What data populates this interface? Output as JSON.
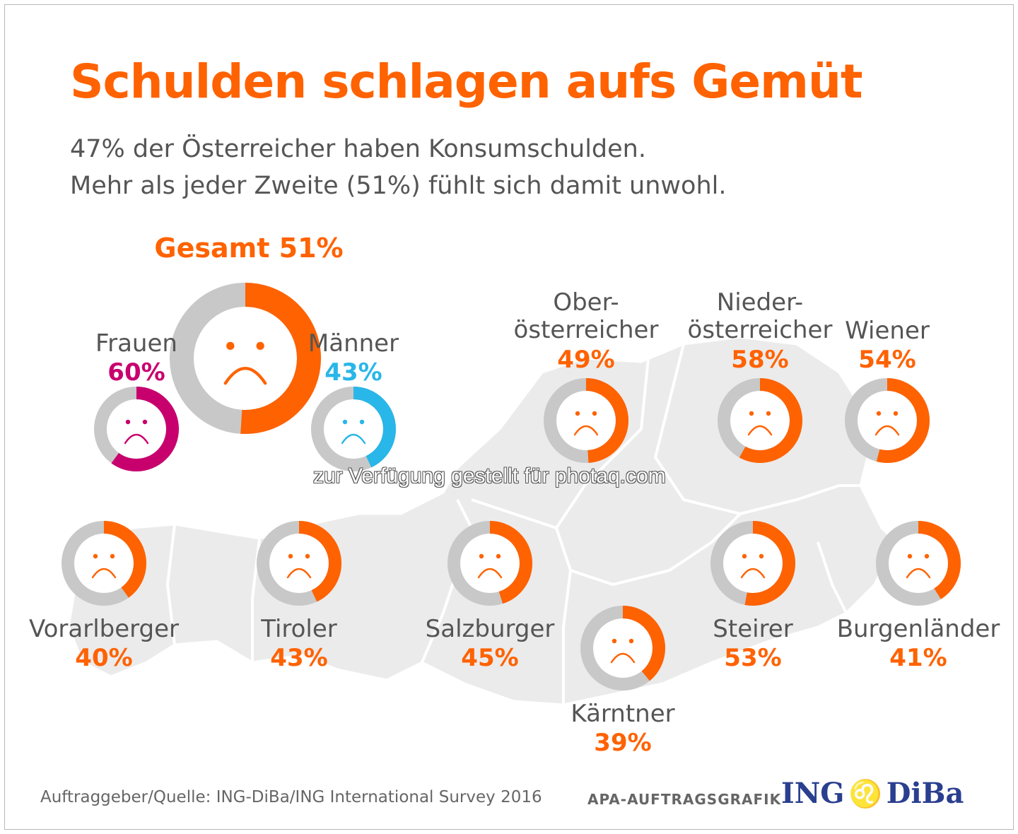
{
  "title": "Schulden schlagen aufs Gemüt",
  "subtitle_line1": "47% der Österreicher haben Konsumschulden.",
  "subtitle_line2": "Mehr als jeder Zweite (51%) fühlt sich damit unwohl.",
  "gesamt_label": "Gesamt 51%",
  "source": "Auftraggeber/Quelle: ING-DiBa/ING International Survey 2016",
  "agency": "APA-AUFTRAGSGRAFIK",
  "logo_left": "ING",
  "logo_right": "DiBa",
  "logo_icon": "lion-icon",
  "watermark": "zur Verfügung gestellt für photaq.com",
  "colors": {
    "accent": "#ff6200",
    "women": "#c8006e",
    "men": "#29b6e8",
    "ring_grey": "#c8c8c8",
    "map": "#ebebeb"
  },
  "chart_data": {
    "type": "pie",
    "series": [
      {
        "key": "gesamt",
        "label": "Gesamt",
        "value": 51,
        "display": "51%",
        "color": "#ff6200"
      },
      {
        "key": "frauen",
        "label": "Frauen",
        "value": 60,
        "display": "60%",
        "color": "#c8006e"
      },
      {
        "key": "maenner",
        "label": "Männer",
        "value": 43,
        "display": "43%",
        "color": "#29b6e8"
      },
      {
        "key": "ooe",
        "label": "Ober-\nösterreicher",
        "value": 49,
        "display": "49%",
        "color": "#ff6200"
      },
      {
        "key": "noe",
        "label": "Nieder-\nösterreicher",
        "value": 58,
        "display": "58%",
        "color": "#ff6200"
      },
      {
        "key": "wien",
        "label": "Wiener",
        "value": 54,
        "display": "54%",
        "color": "#ff6200"
      },
      {
        "key": "vbg",
        "label": "Vorarlberger",
        "value": 40,
        "display": "40%",
        "color": "#ff6200"
      },
      {
        "key": "tirol",
        "label": "Tiroler",
        "value": 43,
        "display": "43%",
        "color": "#ff6200"
      },
      {
        "key": "sbg",
        "label": "Salzburger",
        "value": 45,
        "display": "45%",
        "color": "#ff6200"
      },
      {
        "key": "ktn",
        "label": "Kärntner",
        "value": 39,
        "display": "39%",
        "color": "#ff6200"
      },
      {
        "key": "stmk",
        "label": "Steirer",
        "value": 53,
        "display": "53%",
        "color": "#ff6200"
      },
      {
        "key": "bgld",
        "label": "Burgenländer",
        "value": 41,
        "display": "41%",
        "color": "#ff6200"
      }
    ]
  }
}
